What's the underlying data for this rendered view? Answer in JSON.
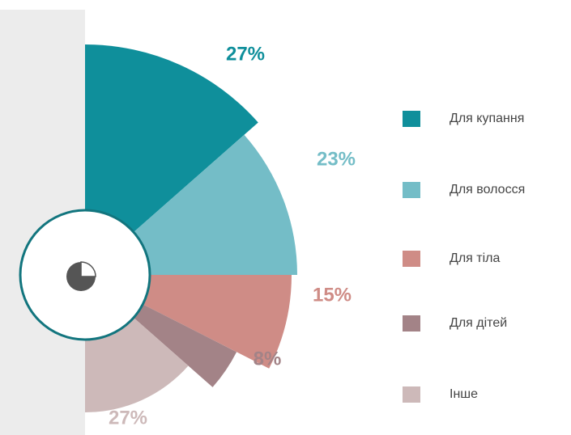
{
  "chart_data": {
    "type": "pie",
    "half": true,
    "categories": [
      "Для купання",
      "Для волосся",
      "Для тіла",
      "Для дітей",
      "Інше"
    ],
    "values": [
      27,
      23,
      15,
      8,
      27
    ],
    "value_labels": [
      "27%",
      "23%",
      "15%",
      "8%",
      "27%"
    ],
    "colors": [
      "#0f8f9b",
      "#74bdc7",
      "#cf8c86",
      "#a38387",
      "#cdb9b9"
    ],
    "legend": "right"
  }
}
